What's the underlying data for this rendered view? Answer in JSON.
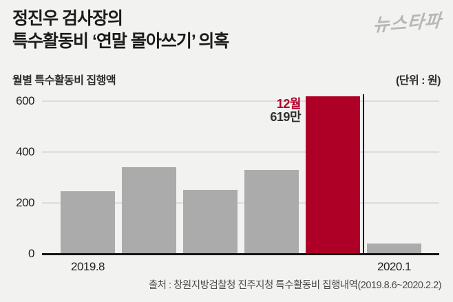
{
  "header": {
    "title_line1": "정진우 검사장의",
    "title_line2": "특수활동비 ‘연말 몰아쓰기’ 의혹",
    "logo_text": "뉴스타파"
  },
  "subheader": {
    "chart_label": "월별 특수활동비 집행액",
    "unit_label": "(단위 : 원)"
  },
  "chart_data": {
    "type": "bar",
    "title": "월별 특수활동비 집행액",
    "unit": "원",
    "values": [
      245,
      340,
      250,
      330,
      619,
      40
    ],
    "highlight_index": 4,
    "highlight_annotation": {
      "line1": "12월",
      "line2": "619만"
    },
    "yticks": [
      0,
      200,
      400,
      600
    ],
    "ylim": [
      0,
      630
    ],
    "grid": "horizontal",
    "legend": "none",
    "x_tick_labels": [
      {
        "text": "2019.8",
        "bar_index": 0
      },
      {
        "text": "2020.1",
        "bar_index": 5
      }
    ],
    "divider_between": [
      4,
      5
    ],
    "colors": {
      "bar": "#ABABAB",
      "highlight": "#AE0027",
      "gridline": "#DCDCDB",
      "axis": "#141414",
      "background": "#F2F2F0"
    }
  },
  "footer": {
    "source": "출처 : 창원지방검찰청 진주지청 특수활동비 집행내역(2019.8.6~2020.2.2)"
  }
}
